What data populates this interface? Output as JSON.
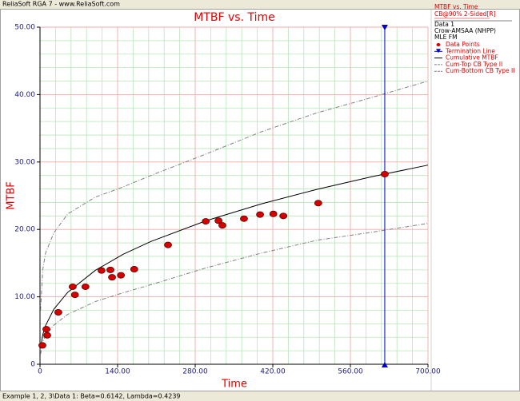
{
  "window_title": "ReliaSoft RGA 7 - www.ReliaSoft.com",
  "footer": "Example 1, 2, 3\\Data 1: Beta=0.6142, Lambda=0.4239",
  "chart_data": {
    "type": "scatter",
    "title": "MTBF vs. Time",
    "x_label": "Time",
    "y_label": "MTBF",
    "xlim": [
      0,
      700
    ],
    "ylim": [
      0,
      50
    ],
    "xticks": [
      0,
      {
        "value": 140,
        "label": "140.00"
      },
      {
        "value": 280,
        "label": "280.00"
      },
      {
        "value": 420,
        "label": "420.00"
      },
      {
        "value": 560,
        "label": "560.00"
      },
      {
        "value": 700,
        "label": "700.00"
      }
    ],
    "yticks": [
      0,
      {
        "value": 10,
        "label": "10.00"
      },
      {
        "value": 20,
        "label": "20.00"
      },
      {
        "value": 30,
        "label": "30.00"
      },
      {
        "value": 40,
        "label": "40.00"
      },
      {
        "value": 50,
        "label": "50.00"
      }
    ],
    "x_minor_ticks": [
      28,
      56,
      84,
      112,
      168,
      196,
      224,
      252,
      308,
      336,
      364,
      392,
      448,
      476,
      504,
      532,
      588,
      616,
      644,
      672
    ],
    "y_minor_ticks": [
      2,
      4,
      6,
      8,
      12,
      14,
      16,
      18,
      22,
      24,
      26,
      28,
      32,
      34,
      36,
      38,
      42,
      44,
      46,
      48
    ],
    "grid": true,
    "legend_header": [
      "MTBF vs. Time",
      "CB@90% 2-Sided[R]",
      "Data 1",
      "Crow-AMSAA (NHPP)",
      "MLE FM"
    ],
    "series": [
      {
        "name": "Data Points",
        "kind": "scatter",
        "color": "#d40000",
        "x": [
          4.3,
          11.5,
          13,
          33,
          59,
          63,
          82,
          111,
          127,
          130,
          146,
          170,
          231,
          299,
          322,
          329,
          368,
          397,
          421,
          439,
          502,
          622
        ],
        "values": [
          2.8,
          5.2,
          4.3,
          7.7,
          11.5,
          10.3,
          11.5,
          13.9,
          14.0,
          12.9,
          13.2,
          14.1,
          17.7,
          21.2,
          21.3,
          20.6,
          21.6,
          22.2,
          22.3,
          22.0,
          23.9,
          28.2
        ]
      },
      {
        "name": "Termination Line",
        "kind": "vline",
        "color": "#0000c8",
        "value": 622
      },
      {
        "name": "Cumulative MTBF",
        "kind": "line",
        "color": "#000000",
        "x": [
          1,
          5,
          10,
          25,
          50,
          100,
          150,
          200,
          300,
          400,
          500,
          600,
          700
        ],
        "values": [
          2.36,
          4.39,
          5.73,
          8.17,
          10.67,
          13.94,
          16.31,
          18.21,
          21.3,
          23.8,
          25.95,
          27.84,
          29.54
        ]
      },
      {
        "name": "Cum-Top CB Type II",
        "kind": "dashed",
        "color": "#808080",
        "x": [
          1,
          5,
          10,
          25,
          50,
          100,
          150,
          200,
          300,
          400,
          500,
          600,
          700
        ],
        "values": [
          8,
          14,
          16.5,
          19.5,
          22.3,
          24.8,
          26.3,
          28,
          31.2,
          34.5,
          37.3,
          39.6,
          42
        ]
      },
      {
        "name": "Cum-Bottom CB Type II",
        "kind": "dashed",
        "color": "#808080",
        "x": [
          1,
          5,
          10,
          25,
          50,
          100,
          150,
          200,
          300,
          400,
          500,
          600,
          700
        ],
        "values": [
          1.5,
          3.3,
          4.3,
          5.8,
          7.4,
          9.3,
          10.6,
          11.8,
          14.3,
          16.5,
          18.4,
          19.6,
          20.9
        ]
      }
    ]
  }
}
